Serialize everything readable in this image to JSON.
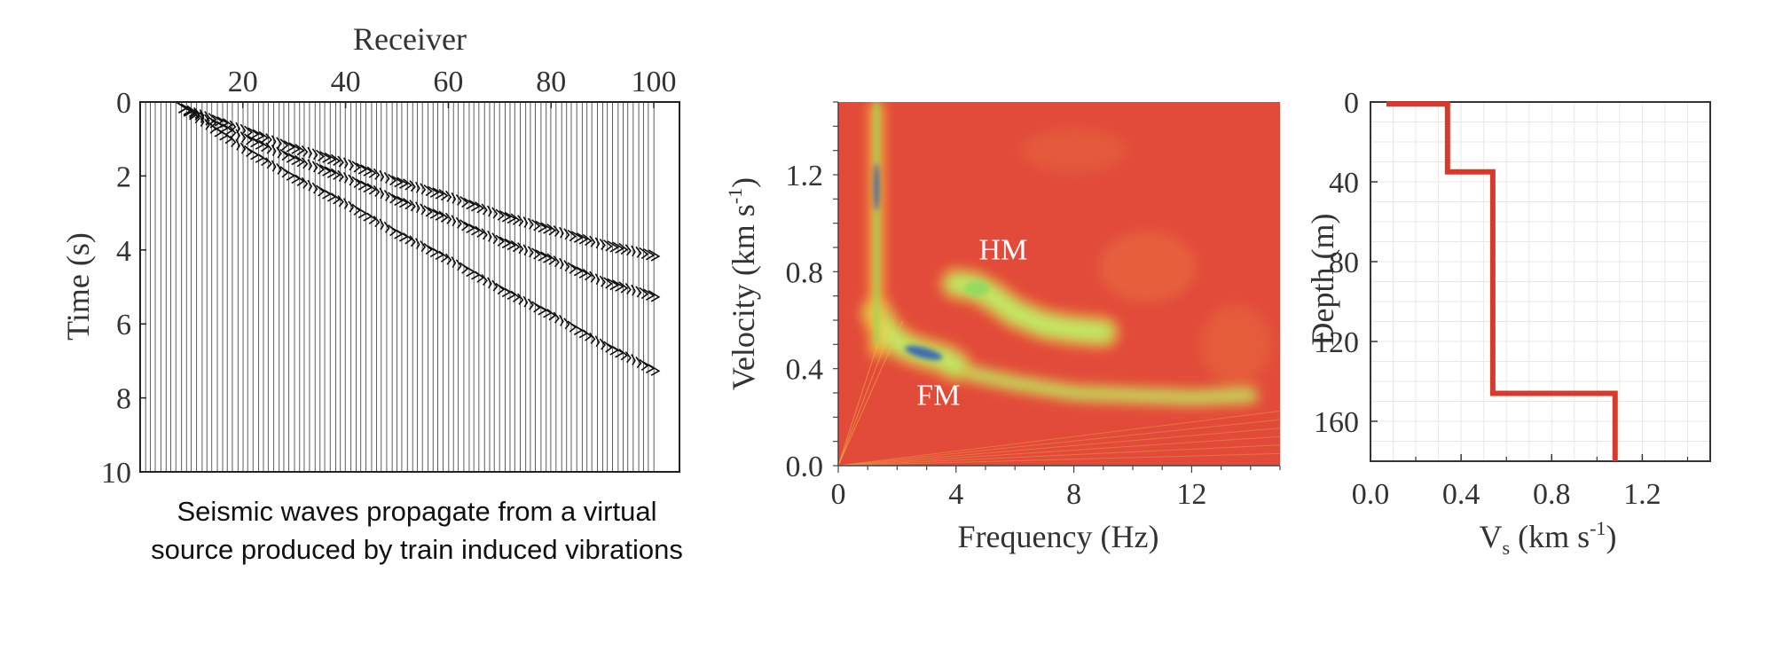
{
  "chart_data": [
    {
      "type": "scatter",
      "title": "",
      "xlabel": "Receiver",
      "ylabel": "Time (s)",
      "x_ticks": [
        20,
        40,
        60,
        80,
        100
      ],
      "y_ticks": [
        0,
        2,
        4,
        6,
        8,
        10
      ],
      "xlim": [
        0,
        105
      ],
      "ylim": [
        10,
        0
      ],
      "x_axis_position": "top",
      "grid": false,
      "legend": "none",
      "trace_color": "#111111",
      "series": [
        {
          "x": [
            8,
            20,
            30,
            40,
            50,
            60,
            70,
            80,
            90,
            100
          ],
          "y": [
            0.1,
            0.9,
            1.5,
            2.0,
            2.6,
            3.1,
            3.7,
            4.2,
            4.8,
            5.2
          ]
        },
        {
          "x": [
            8,
            20,
            30,
            40,
            50,
            60,
            70,
            80,
            90,
            100
          ],
          "y": [
            0.1,
            1.2,
            2.0,
            2.7,
            3.5,
            4.2,
            5.0,
            5.7,
            6.5,
            7.2
          ]
        },
        {
          "x": [
            8,
            20,
            30,
            40,
            50,
            60,
            70,
            80,
            90,
            100
          ],
          "y": [
            0.1,
            0.7,
            1.2,
            1.6,
            2.1,
            2.5,
            3.0,
            3.4,
            3.8,
            4.1
          ]
        }
      ],
      "caption": "Seismic waves propagate from a virtual source produced by train induced vibrations"
    },
    {
      "type": "heatmap",
      "title": "",
      "xlabel": "Frequency (Hz)",
      "ylabel_main": "Velocity (km s",
      "ylabel_sup": "-1",
      "ylabel_end": ")",
      "x_ticks": [
        0,
        4,
        8,
        12
      ],
      "y_ticks": [
        0.0,
        0.4,
        0.8,
        1.2
      ],
      "xlim": [
        0,
        15
      ],
      "ylim": [
        0,
        1.5
      ],
      "annotations": [
        {
          "text": "HM",
          "x": 5.6,
          "y": 0.85
        },
        {
          "text": "FM",
          "x": 3.4,
          "y": 0.25
        }
      ],
      "colors": {
        "background": "#e24b3a",
        "low": "#e8683e",
        "mid": "#f2c23e",
        "high": "#8fd860",
        "peak": "#2c5fb8"
      },
      "ridges": [
        {
          "name": "",
          "x": [
            1.3,
            1.6,
            2.0,
            2.5,
            3.0,
            3.6,
            4.0
          ],
          "y": [
            0.63,
            0.56,
            0.51,
            0.48,
            0.46,
            0.44,
            0.41
          ]
        },
        {
          "name": "",
          "x": [
            4.0,
            4.6,
            5.2,
            6.0,
            7.0,
            8.0,
            9.0
          ],
          "y": [
            0.75,
            0.74,
            0.7,
            0.63,
            0.58,
            0.56,
            0.55
          ]
        },
        {
          "name": "",
          "x": [
            4.5,
            6.0,
            8.0,
            10.0,
            12.0,
            14.0
          ],
          "y": [
            0.38,
            0.34,
            0.3,
            0.29,
            0.28,
            0.29
          ]
        }
      ]
    },
    {
      "type": "line",
      "title": "",
      "xlabel_main": "V",
      "xlabel_sub": "s",
      "xlabel_rest": " (km s",
      "xlabel_sup": "-1",
      "xlabel_end": ")",
      "ylabel": "Depth (m)",
      "x_ticks": [
        0.0,
        0.4,
        0.8,
        1.2
      ],
      "y_ticks": [
        0,
        40,
        80,
        120,
        160
      ],
      "xlim": [
        0,
        1.5
      ],
      "ylim": [
        180,
        0
      ],
      "grid": true,
      "legend": "none",
      "line_color": "#d63a2c",
      "series": [
        {
          "x": [
            0.07,
            0.34,
            0.34,
            0.54,
            0.54,
            1.08,
            1.08
          ],
          "y": [
            1,
            1,
            35,
            35,
            146,
            146,
            180
          ]
        }
      ]
    }
  ]
}
